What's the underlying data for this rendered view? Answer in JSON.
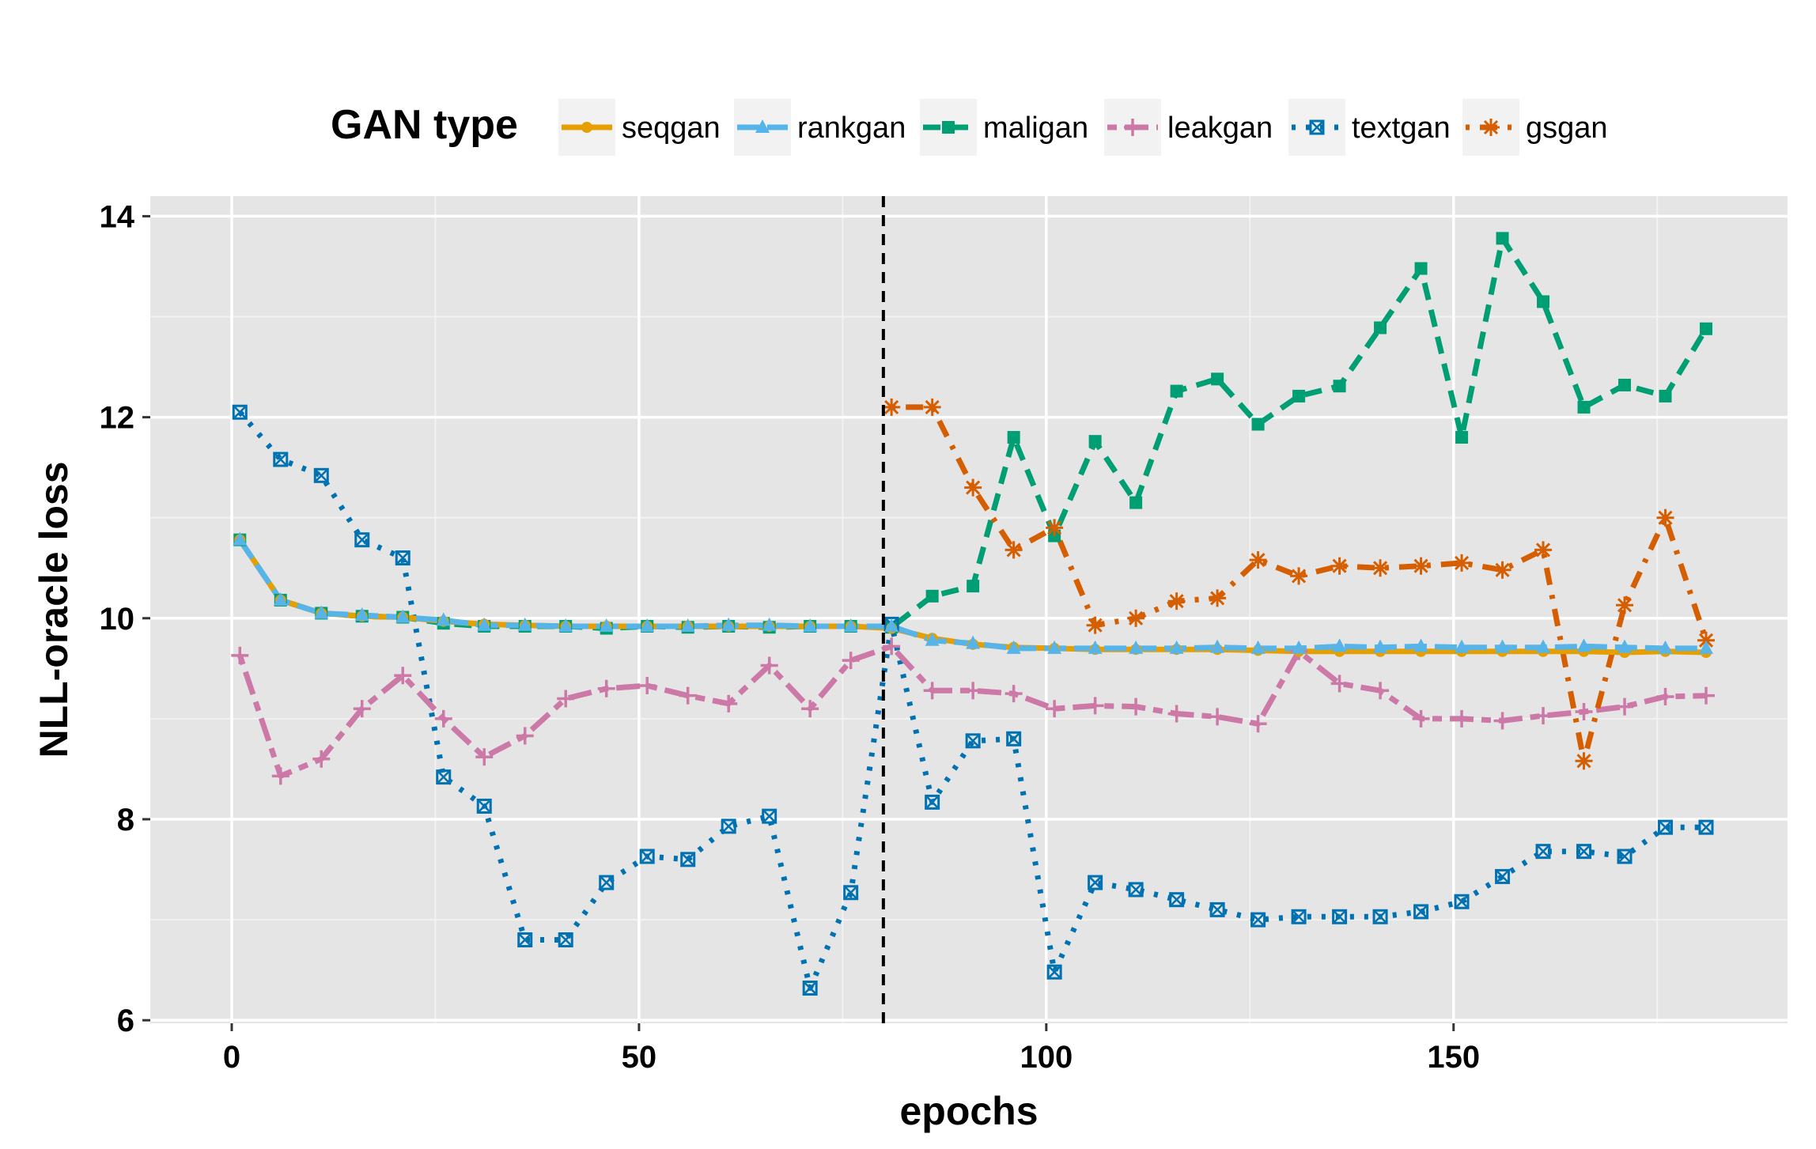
{
  "chart_data": {
    "type": "line",
    "title": "",
    "xlabel": "epochs",
    "ylabel": "NLL-oracle loss",
    "xlim": [
      -10,
      191
    ],
    "ylim": [
      5.97,
      14.2
    ],
    "xticks": [
      0,
      50,
      100,
      150
    ],
    "yticks": [
      6,
      8,
      10,
      12,
      14
    ],
    "grid": true,
    "legend_position": "top",
    "legend_title": "GAN type",
    "vline": {
      "x": 80,
      "style": "dashed",
      "color": "#000000"
    },
    "colors": {
      "panel_background": "#e5e5e5",
      "grid": "#ffffff",
      "seqgan": "#e69f00",
      "rankgan": "#56b4e9",
      "maligan": "#009e73",
      "leakgan": "#cc79a7",
      "textgan": "#0072b2",
      "gsgan": "#d55e00"
    },
    "series": [
      {
        "name": "seqgan",
        "marker": "circle",
        "line": "solid",
        "x": [
          1,
          6,
          11,
          16,
          21,
          26,
          31,
          36,
          41,
          46,
          51,
          56,
          61,
          66,
          71,
          76,
          81,
          86,
          91,
          96,
          101,
          106,
          111,
          116,
          121,
          126,
          131,
          136,
          141,
          146,
          151,
          156,
          161,
          166,
          171,
          176,
          181
        ],
        "values": [
          10.78,
          10.18,
          10.05,
          10.02,
          10.01,
          9.97,
          9.94,
          9.93,
          9.92,
          9.92,
          9.92,
          9.92,
          9.92,
          9.92,
          9.92,
          9.92,
          9.9,
          9.8,
          9.74,
          9.71,
          9.7,
          9.69,
          9.69,
          9.69,
          9.69,
          9.68,
          9.67,
          9.67,
          9.67,
          9.67,
          9.67,
          9.67,
          9.67,
          9.67,
          9.66,
          9.67,
          9.66
        ]
      },
      {
        "name": "rankgan",
        "marker": "triangle",
        "line": "longdash",
        "x": [
          1,
          6,
          11,
          16,
          21,
          26,
          31,
          36,
          41,
          46,
          51,
          56,
          61,
          66,
          71,
          76,
          81,
          86,
          91,
          96,
          101,
          106,
          111,
          116,
          121,
          126,
          131,
          136,
          141,
          146,
          151,
          156,
          161,
          166,
          171,
          176,
          181
        ],
        "values": [
          10.78,
          10.18,
          10.05,
          10.03,
          10.01,
          9.98,
          9.93,
          9.93,
          9.92,
          9.92,
          9.92,
          9.92,
          9.93,
          9.93,
          9.92,
          9.92,
          9.92,
          9.78,
          9.75,
          9.7,
          9.7,
          9.7,
          9.7,
          9.7,
          9.71,
          9.7,
          9.7,
          9.72,
          9.71,
          9.72,
          9.71,
          9.71,
          9.71,
          9.72,
          9.71,
          9.7,
          9.7
        ]
      },
      {
        "name": "maligan",
        "marker": "square",
        "line": "dashed",
        "x": [
          1,
          6,
          11,
          16,
          21,
          26,
          31,
          36,
          41,
          46,
          51,
          56,
          61,
          66,
          71,
          76,
          81,
          86,
          91,
          96,
          101,
          106,
          111,
          116,
          121,
          126,
          131,
          136,
          141,
          146,
          151,
          156,
          161,
          166,
          171,
          176,
          181
        ],
        "values": [
          10.78,
          10.18,
          10.05,
          10.02,
          10.01,
          9.95,
          9.92,
          9.92,
          9.92,
          9.9,
          9.92,
          9.91,
          9.92,
          9.91,
          9.92,
          9.92,
          9.91,
          10.22,
          10.32,
          11.8,
          10.82,
          11.76,
          11.15,
          12.26,
          12.38,
          11.93,
          12.21,
          12.31,
          12.89,
          13.48,
          11.8,
          13.78,
          13.15,
          12.1,
          12.32,
          12.21,
          12.88
        ]
      },
      {
        "name": "leakgan",
        "marker": "plus",
        "line": "twodash",
        "x": [
          1,
          6,
          11,
          16,
          21,
          26,
          31,
          36,
          41,
          46,
          51,
          56,
          61,
          66,
          71,
          76,
          81,
          86,
          91,
          96,
          101,
          106,
          111,
          116,
          121,
          126,
          131,
          136,
          141,
          146,
          151,
          156,
          161,
          166,
          171,
          176,
          181
        ],
        "values": [
          9.63,
          8.43,
          8.6,
          9.1,
          9.43,
          9.0,
          8.62,
          8.83,
          9.2,
          9.3,
          9.33,
          9.23,
          9.15,
          9.53,
          9.1,
          9.58,
          9.72,
          9.28,
          9.28,
          9.25,
          9.1,
          9.13,
          9.12,
          9.05,
          9.02,
          8.95,
          9.67,
          9.35,
          9.28,
          9.0,
          9.0,
          8.98,
          9.03,
          9.07,
          9.12,
          9.22,
          9.23
        ]
      },
      {
        "name": "textgan",
        "marker": "square-cross",
        "line": "dotted",
        "x": [
          1,
          6,
          11,
          16,
          21,
          26,
          31,
          36,
          41,
          46,
          51,
          56,
          61,
          66,
          71,
          76,
          81,
          86,
          91,
          96,
          101,
          106,
          111,
          116,
          121,
          126,
          131,
          136,
          141,
          146,
          151,
          156,
          161,
          166,
          171,
          176,
          181
        ],
        "values": [
          12.05,
          11.58,
          11.42,
          10.78,
          10.6,
          8.42,
          8.13,
          6.8,
          6.8,
          7.37,
          7.63,
          7.6,
          7.93,
          8.03,
          6.32,
          7.27,
          9.94,
          8.17,
          8.78,
          8.8,
          6.48,
          7.37,
          7.3,
          7.2,
          7.1,
          7.0,
          7.03,
          7.03,
          7.03,
          7.08,
          7.18,
          7.43,
          7.68,
          7.68,
          7.63,
          7.92,
          7.92
        ]
      },
      {
        "name": "gsgan",
        "marker": "asterisk",
        "line": "dotdash",
        "x": [
          81,
          86,
          91,
          96,
          101,
          106,
          111,
          116,
          121,
          126,
          131,
          136,
          141,
          146,
          151,
          156,
          161,
          166,
          171,
          176,
          181
        ],
        "values": [
          12.1,
          12.1,
          11.3,
          10.68,
          10.9,
          9.93,
          10.0,
          10.17,
          10.2,
          10.58,
          10.42,
          10.52,
          10.5,
          10.52,
          10.55,
          10.48,
          10.68,
          8.58,
          10.13,
          11.0,
          9.78
        ]
      }
    ]
  }
}
